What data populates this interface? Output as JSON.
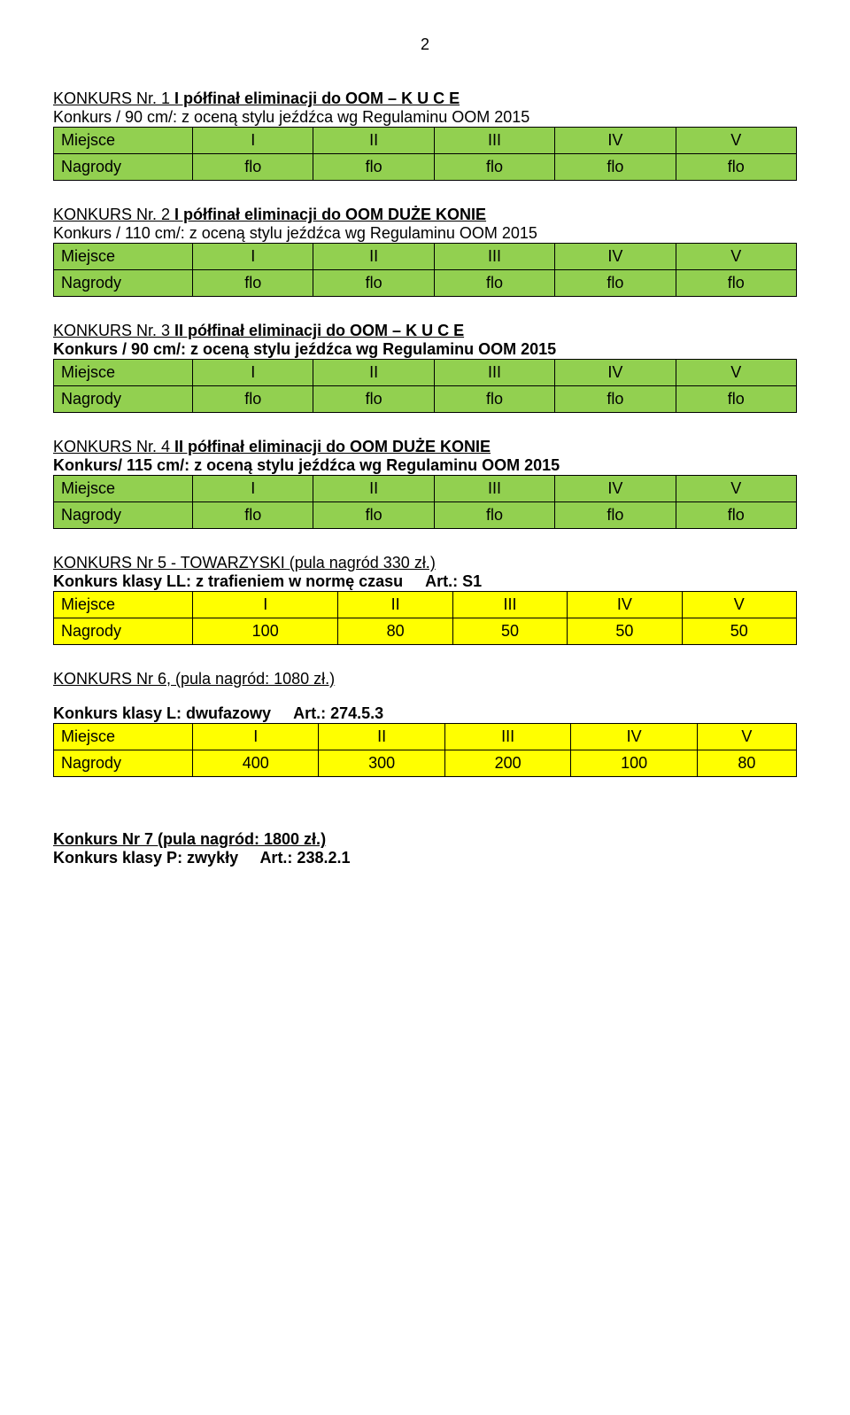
{
  "page_number": "2",
  "colors": {
    "green": "#92d050",
    "yellow": "#ffff00",
    "border": "#000000",
    "text": "#000000",
    "background": "#ffffff"
  },
  "table_headers": [
    "I",
    "II",
    "III",
    "IV",
    "V"
  ],
  "row_labels": {
    "miejsce": "Miejsce",
    "nagrody": "Nagrody"
  },
  "sections": [
    {
      "title_prefix": "KONKURS Nr. 1 ",
      "title_bold": "I półfinał  eliminacji do OOM – K U C E",
      "desc_plain": "Konkurs  / 90 cm/: z oceną stylu jeźdźca   wg Regulaminu OOM 2015",
      "desc_bold": "",
      "table_color": "green",
      "values": [
        "flo",
        "flo",
        "flo",
        "flo",
        "flo"
      ]
    },
    {
      "title_prefix": "KONKURS Nr. 2 ",
      "title_bold": "I półfinał eliminacji do OOM DUŻE KONIE",
      "desc_plain": "Konkurs  / 110 cm/: z oceną stylu jeźdźca wg Regulaminu OOM 2015",
      "desc_bold": "",
      "table_color": "green",
      "values": [
        "flo",
        "flo",
        "flo",
        "flo",
        "flo"
      ]
    },
    {
      "title_prefix": "KONKURS Nr. 3 ",
      "title_bold": "II półfinał  eliminacji do OOM – K U C E",
      "desc_plain": "",
      "desc_bold": "Konkurs  / 90 cm/: z oceną stylu jeźdźca wg Regulaminu OOM 2015",
      "table_color": "green",
      "values": [
        "flo",
        "flo",
        "flo",
        "flo",
        "flo"
      ]
    },
    {
      "title_prefix": "KONKURS Nr. 4 ",
      "title_bold": "II półfinał eliminacji do OOM DUŻE KONIE",
      "desc_plain": "",
      "desc_bold": "Konkurs/ 115 cm/: z oceną stylu jeźdźca wg Regulaminu OOM 2015",
      "table_color": "green",
      "values": [
        "flo",
        "flo",
        "flo",
        "flo",
        "flo"
      ]
    },
    {
      "title_prefix": "KONKURS Nr 5  - TOWARZYSKI (pula nagród 330 zł.)",
      "title_bold": "",
      "desc_plain": "",
      "desc_bold_part1": "Konkurs klasy LL: z trafieniem w normę czasu",
      "desc_bold_part2": "Art.: S1",
      "table_color": "yellow",
      "values": [
        "100",
        "80",
        "50",
        "50",
        "50"
      ]
    },
    {
      "title_prefix": "KONKURS Nr 6, (pula nagród: 1080 zł.)",
      "title_bold": "",
      "desc_plain": "",
      "desc_bold_part1": "Konkurs klasy L: dwufazowy",
      "desc_bold_part2": "Art.: 274.5.3",
      "spacer_after_title": true,
      "table_color": "yellow",
      "values": [
        "400",
        "300",
        "200",
        "100",
        "80"
      ]
    }
  ],
  "footer": {
    "title": "Konkurs Nr 7 (pula nagród: 1800 zł.)",
    "desc_part1": "Konkurs klasy P: zwykły",
    "desc_part2": "Art.:  238.2.1"
  }
}
